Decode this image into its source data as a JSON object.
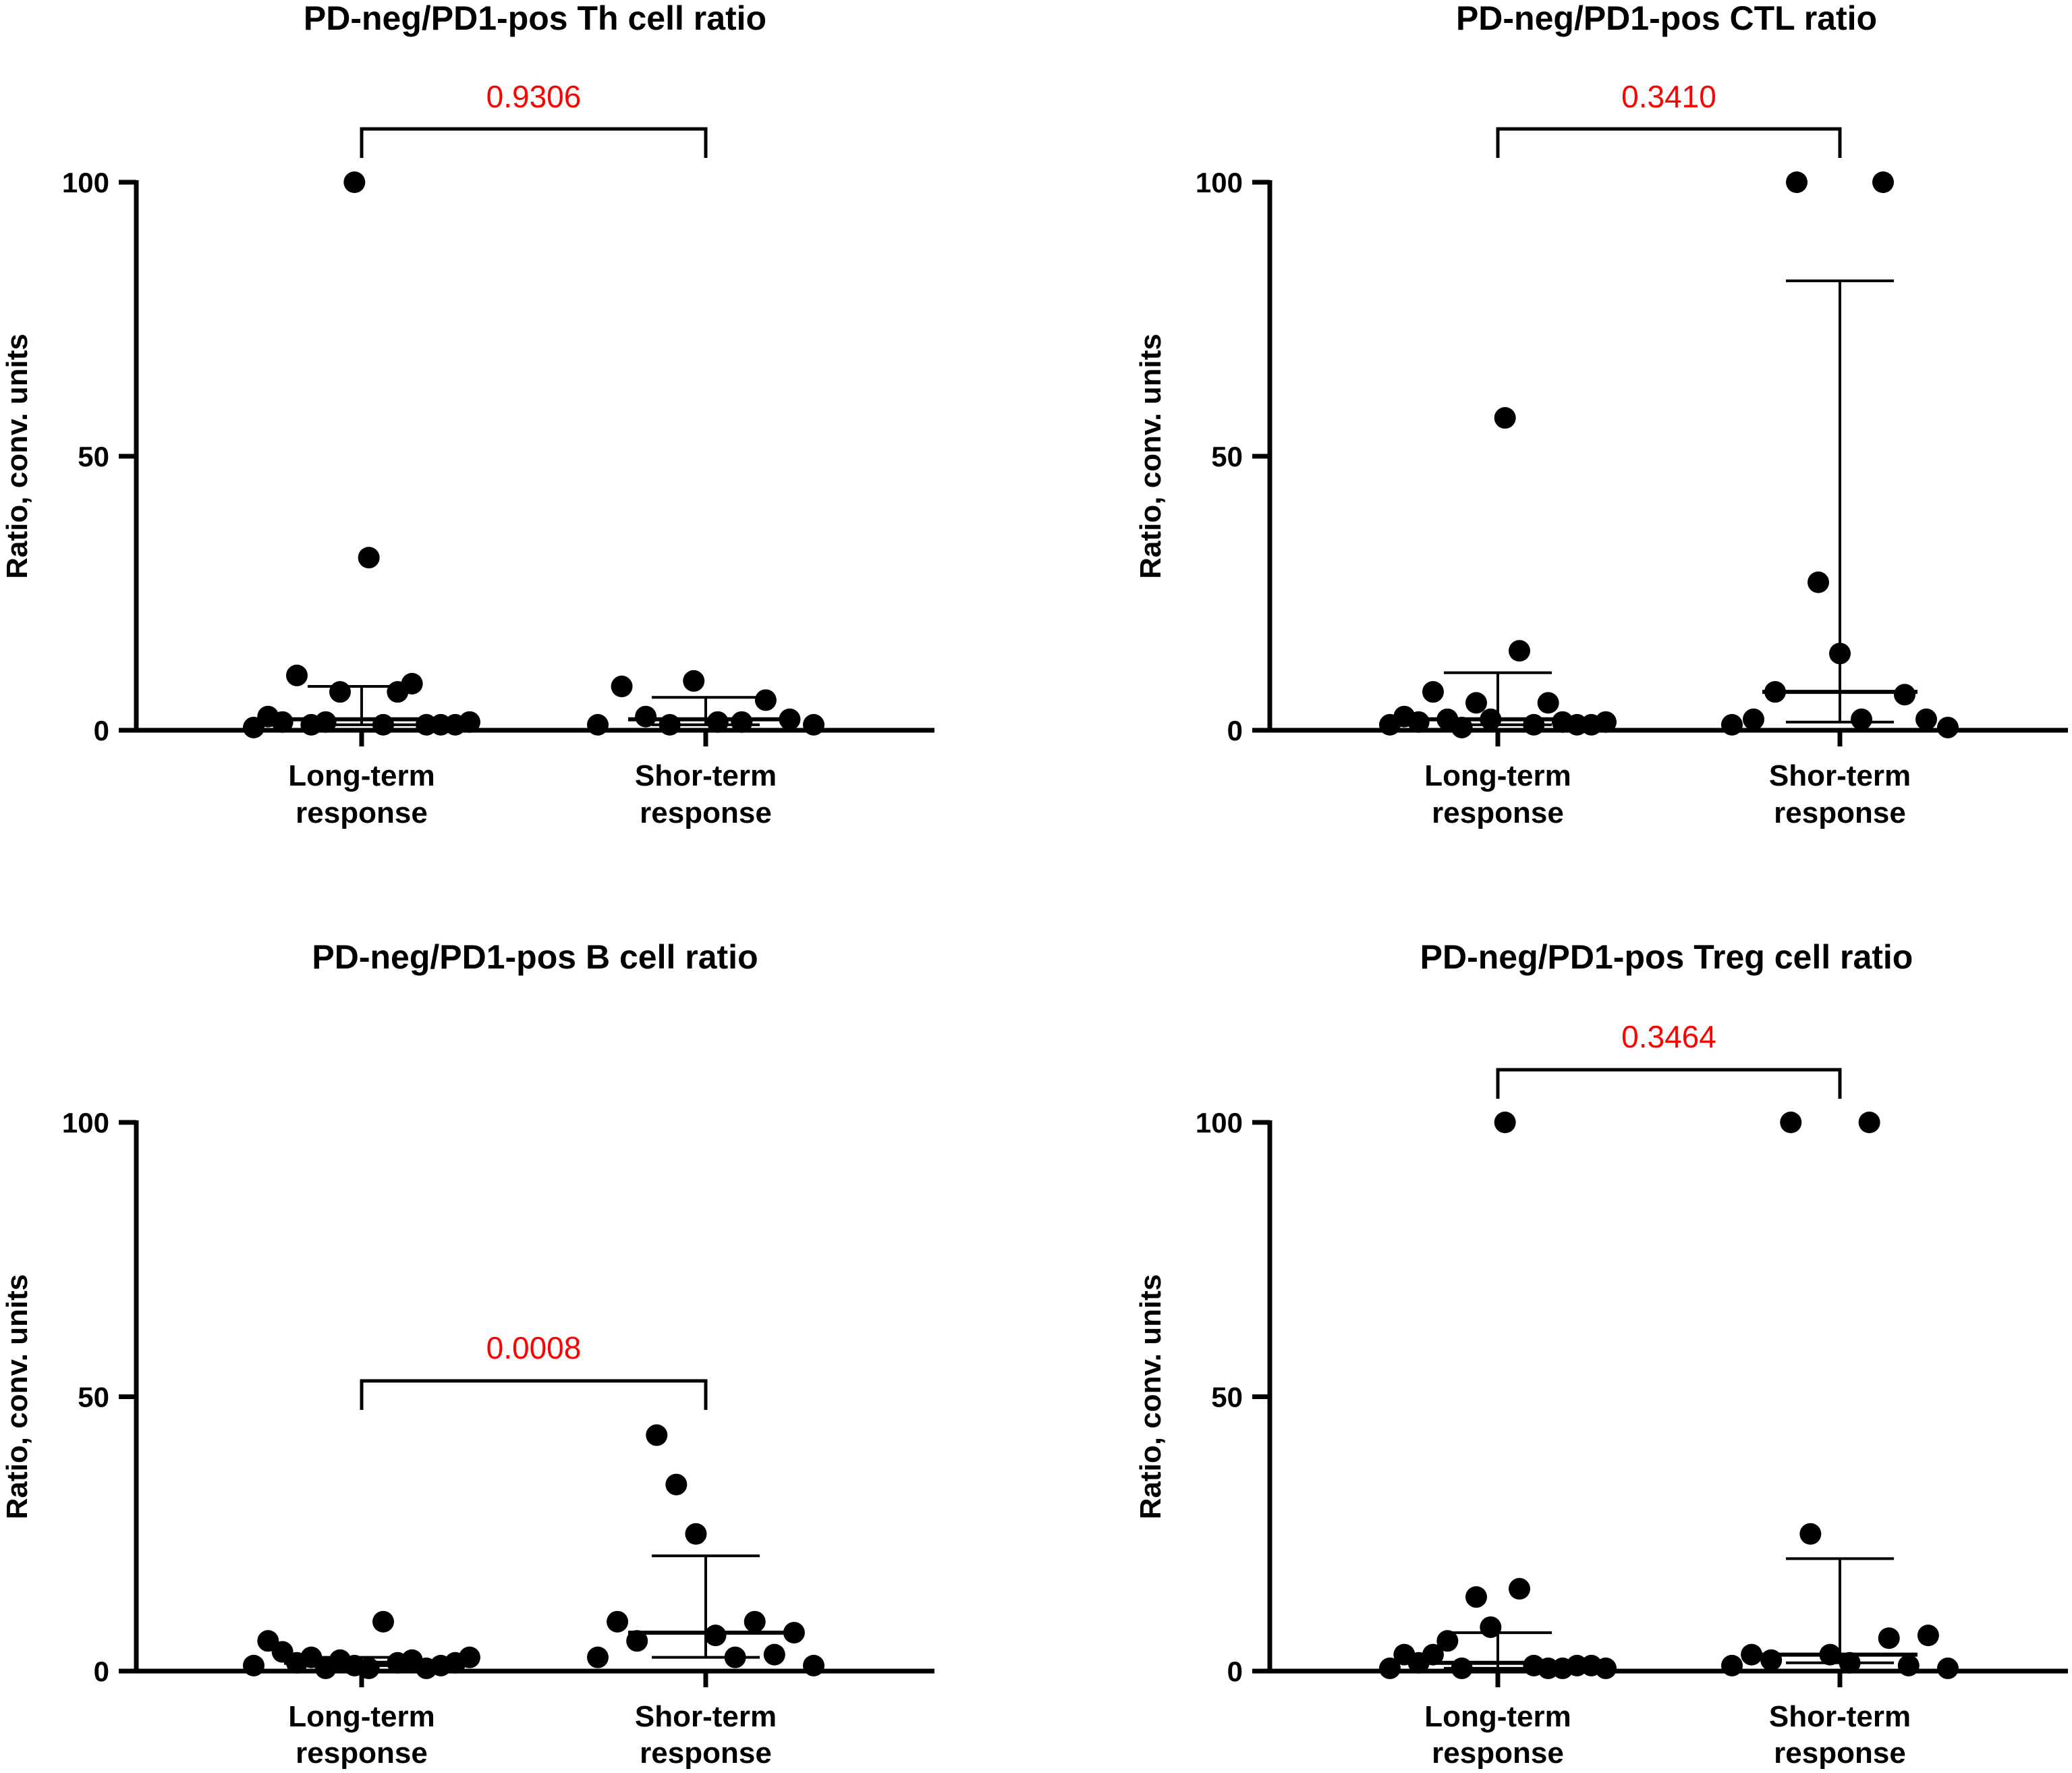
{
  "chart_data": [
    {
      "type": "scatter",
      "title": "PD-neg/PD1-pos Th cell ratio",
      "xlabel": "",
      "ylabel": "Ratio, conv. units",
      "ylim": [
        0,
        100
      ],
      "yticks": [
        "0",
        "50",
        "100"
      ],
      "categories": [
        [
          "Long-term",
          "response"
        ],
        [
          "Shor-term",
          "response"
        ]
      ],
      "groups": [
        {
          "name": "Long-term response",
          "points": [
            0.5,
            2.5,
            1.5,
            10,
            1,
            1.5,
            7,
            100,
            31.5,
            1,
            7,
            8.5,
            1,
            1,
            1,
            1.5
          ],
          "median": 2,
          "q1": 1,
          "q3": 8
        },
        {
          "name": "Shor-term response",
          "points": [
            1,
            8,
            2.5,
            1,
            9,
            1.5,
            1.5,
            5.5,
            2,
            1
          ],
          "median": 2,
          "q1": 1,
          "q3": 6
        }
      ],
      "comparison": {
        "p_value": "0.9306",
        "color": "#ff0000"
      }
    },
    {
      "type": "scatter",
      "title": "PD-neg/PD1-pos CTL ratio",
      "xlabel": "",
      "ylabel": "Ratio, conv. units",
      "ylim": [
        0,
        100
      ],
      "yticks": [
        "0",
        "50",
        "100"
      ],
      "categories": [
        [
          "Long-term",
          "response"
        ],
        [
          "Shor-term",
          "response"
        ]
      ],
      "groups": [
        {
          "name": "Long-term response",
          "points": [
            1,
            2.5,
            1.5,
            7,
            2,
            0.5,
            5,
            2,
            57,
            14.5,
            1,
            5,
            1.5,
            1,
            1,
            1.5
          ],
          "median": 2,
          "q1": 1,
          "q3": 10.5
        },
        {
          "name": "Shor-term response",
          "points": [
            1,
            2,
            7,
            100,
            27,
            14,
            2,
            100,
            6.5,
            2,
            0.5
          ],
          "median": 7,
          "q1": 1.5,
          "q3": 82
        }
      ],
      "comparison": {
        "p_value": "0.3410",
        "color": "#ff0000"
      }
    },
    {
      "type": "scatter",
      "title": "PD-neg/PD1-pos B cell ratio",
      "xlabel": "",
      "ylabel": "Ratio, conv. units",
      "ylim": [
        0,
        100
      ],
      "yticks": [
        "0",
        "50",
        "100"
      ],
      "categories": [
        [
          "Long-term",
          "response"
        ],
        [
          "Shor-term",
          "response"
        ]
      ],
      "groups": [
        {
          "name": "Long-term response",
          "points": [
            1,
            5.5,
            3.5,
            1.5,
            2.5,
            0.5,
            2,
            1,
            0.5,
            9,
            1.5,
            2,
            0.5,
            1,
            1.5,
            2.5
          ],
          "median": 1.5,
          "q1": 1,
          "q3": 2.5
        },
        {
          "name": "Shor-term response",
          "points": [
            2.5,
            9,
            5.5,
            43,
            34,
            25,
            6.5,
            2.5,
            9,
            3,
            7,
            1
          ],
          "median": 7,
          "q1": 2.5,
          "q3": 21
        }
      ],
      "comparison": {
        "p_value": "0.0008",
        "color": "#ff0000"
      }
    },
    {
      "type": "scatter",
      "title": "PD-neg/PD1-pos Treg cell ratio",
      "xlabel": "",
      "ylabel": "Ratio, conv. units",
      "ylim": [
        0,
        100
      ],
      "yticks": [
        "0",
        "50",
        "100"
      ],
      "categories": [
        [
          "Long-term",
          "response"
        ],
        [
          "Shor-term",
          "response"
        ]
      ],
      "groups": [
        {
          "name": "Long-term response",
          "points": [
            0.5,
            3,
            1.5,
            3,
            5.5,
            0.5,
            13.5,
            8,
            100,
            15,
            1,
            0.5,
            0.5,
            1,
            1,
            0.5
          ],
          "median": 1.5,
          "q1": 0.5,
          "q3": 7
        },
        {
          "name": "Shor-term response",
          "points": [
            1,
            3,
            2,
            100,
            25,
            3,
            1.5,
            100,
            6,
            1,
            6.5,
            0.5
          ],
          "median": 3,
          "q1": 1.5,
          "q3": 20.5
        }
      ],
      "comparison": {
        "p_value": "0.3464",
        "color": "#ff0000"
      }
    }
  ]
}
